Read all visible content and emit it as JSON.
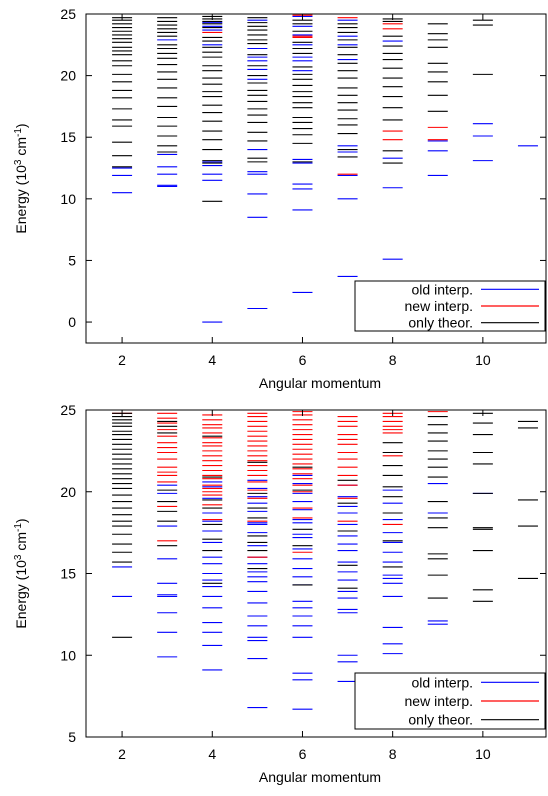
{
  "chart_data": [
    {
      "type": "scatter",
      "title": "",
      "xlabel": "Angular momentum",
      "ylabel": "Energy (10^3 cm^-1)",
      "ylabel_parts": {
        "base": "Energy (10",
        "exp1": "3",
        "mid": " cm",
        "exp2": "-1",
        "end": ")"
      },
      "xlim": [
        1.2,
        11.4
      ],
      "ylim": [
        -1.7,
        25
      ],
      "xticks": [
        "2",
        "4",
        "6",
        "8",
        "10"
      ],
      "xtick_values": [
        2,
        4,
        6,
        8,
        10
      ],
      "yticks": [
        "0",
        "5",
        "10",
        "15",
        "20",
        "25"
      ],
      "ytick_values": [
        0,
        5,
        10,
        15,
        20,
        25
      ],
      "grid": false,
      "legend": {
        "placement": "bottom-right"
      },
      "series": [
        {
          "name": "old interp.",
          "color": "#0000ff",
          "levels": [
            {
              "l": 2,
              "e": [
                10.5,
                11.9,
                12.5
              ]
            },
            {
              "l": 3,
              "e": [
                11.0,
                11.1,
                12.0,
                12.6,
                13.6,
                22.9
              ]
            },
            {
              "l": 4,
              "e": [
                0.0,
                11.5,
                12.0,
                12.7,
                13.0,
                22.5,
                23.7,
                24.0,
                24.3
              ]
            },
            {
              "l": 5,
              "e": [
                1.1,
                8.5,
                10.4,
                12.0,
                12.2,
                14.0,
                19.7,
                20.5,
                21.2,
                21.5,
                22.2,
                24.5
              ]
            },
            {
              "l": 6,
              "e": [
                2.4,
                9.1,
                10.8,
                11.2,
                12.9,
                13.2,
                20.4,
                21.2,
                21.5,
                22.5,
                23.3,
                24.0,
                24.8
              ]
            },
            {
              "l": 7,
              "e": [
                3.7,
                10.0,
                11.9,
                13.8,
                14.3,
                21.3,
                22.5,
                23.2,
                24.5
              ]
            },
            {
              "l": 8,
              "e": [
                5.1,
                10.9,
                13.3,
                22.8
              ]
            },
            {
              "l": 9,
              "e": [
                11.9,
                13.9,
                14.7
              ]
            },
            {
              "l": 10,
              "e": [
                13.1,
                15.1,
                16.1
              ]
            },
            {
              "l": 11,
              "e": [
                14.3
              ]
            }
          ]
        },
        {
          "name": "new interp.",
          "color": "#ff0000",
          "levels": [
            {
              "l": 4,
              "e": [
                23.5
              ]
            },
            {
              "l": 6,
              "e": [
                23.1,
                23.2,
                24.9
              ]
            },
            {
              "l": 7,
              "e": [
                12.0,
                24.7
              ]
            },
            {
              "l": 8,
              "e": [
                14.8,
                15.5,
                23.8,
                24.2
              ]
            },
            {
              "l": 9,
              "e": [
                14.8,
                15.8
              ]
            }
          ]
        },
        {
          "name": "only theor.",
          "color": "#000000",
          "levels": [
            {
              "l": 2,
              "e": [
                12.6,
                13.5,
                14.6,
                15.9,
                16.4,
                17.3,
                18.2,
                18.8,
                19.5,
                20.1,
                20.8,
                21.2,
                21.7,
                22.0,
                22.3,
                22.7,
                23.0,
                23.3,
                23.6,
                23.9,
                24.2,
                24.5,
                24.7
              ]
            },
            {
              "l": 3,
              "e": [
                13.8,
                14.3,
                15.1,
                15.9,
                16.6,
                17.5,
                18.2,
                19.0,
                19.7,
                20.3,
                20.9,
                21.4,
                21.8,
                22.2,
                22.5,
                23.2,
                23.5,
                23.8,
                24.1,
                24.4,
                24.7
              ]
            },
            {
              "l": 4,
              "e": [
                9.8,
                12.9,
                13.1,
                14.0,
                14.8,
                15.5,
                16.3,
                17.0,
                17.6,
                18.3,
                18.7,
                19.3,
                19.8,
                20.4,
                20.8,
                21.5,
                21.9,
                22.3,
                22.8,
                23.1,
                23.9,
                24.2,
                24.4,
                24.6,
                24.8
              ]
            },
            {
              "l": 5,
              "e": [
                13.0,
                13.3,
                14.7,
                15.4,
                16.2,
                16.8,
                17.3,
                17.9,
                18.4,
                18.8,
                19.4,
                20.0,
                20.8,
                21.7,
                22.6,
                22.9,
                23.3,
                23.7,
                24.0,
                24.3,
                24.7
              ]
            },
            {
              "l": 6,
              "e": [
                13.0,
                14.5,
                15.2,
                15.7,
                16.2,
                16.6,
                17.4,
                17.8,
                18.3,
                18.7,
                19.2,
                19.7,
                20.1,
                20.7,
                21.8,
                22.2,
                22.7,
                23.6,
                24.2,
                24.5
              ]
            },
            {
              "l": 7,
              "e": [
                13.4,
                14.0,
                15.3,
                16.0,
                16.5,
                17.2,
                17.8,
                18.4,
                19.0,
                19.8,
                20.4,
                21.0,
                21.7,
                22.3,
                22.9,
                23.5,
                23.9,
                24.2
              ]
            },
            {
              "l": 8,
              "e": [
                12.9,
                13.9,
                16.4,
                17.4,
                18.3,
                19.1,
                19.8,
                20.6,
                21.3,
                21.8,
                22.4,
                23.2,
                24.4,
                24.6
              ]
            },
            {
              "l": 9,
              "e": [
                17.1,
                18.4,
                19.5,
                20.3,
                21.0,
                22.3,
                22.9,
                23.4,
                24.2
              ]
            },
            {
              "l": 10,
              "e": [
                20.1,
                24.1,
                24.5
              ]
            }
          ]
        }
      ]
    },
    {
      "type": "scatter",
      "title": "",
      "xlabel": "Angular momentum",
      "ylabel": "Energy (10^3 cm^-1)",
      "ylabel_parts": {
        "base": "Energy (10",
        "exp1": "3",
        "mid": " cm",
        "exp2": "-1",
        "end": ")"
      },
      "xlim": [
        1.2,
        11.4
      ],
      "ylim": [
        5,
        25
      ],
      "xticks": [
        "2",
        "4",
        "6",
        "8",
        "10"
      ],
      "xtick_values": [
        2,
        4,
        6,
        8,
        10
      ],
      "yticks": [
        "5",
        "10",
        "15",
        "20",
        "25"
      ],
      "ytick_values": [
        5,
        10,
        15,
        20,
        25
      ],
      "grid": false,
      "legend": {
        "placement": "bottom-right"
      },
      "series": [
        {
          "name": "old interp.",
          "color": "#0000ff",
          "levels": [
            {
              "l": 2,
              "e": [
                13.6,
                15.4
              ]
            },
            {
              "l": 3,
              "e": [
                9.9,
                11.4,
                12.6,
                13.6,
                13.7,
                14.4,
                15.9,
                17.9,
                19.9,
                20.4
              ]
            },
            {
              "l": 4,
              "e": [
                9.1,
                10.6,
                11.4,
                12.0,
                12.9,
                13.6,
                14.2,
                14.6,
                15.0,
                15.6,
                16.0,
                16.9,
                17.6,
                18.2,
                18.7,
                19.6,
                20.3,
                20.6
              ]
            },
            {
              "l": 5,
              "e": [
                6.8,
                9.8,
                10.9,
                11.1,
                11.8,
                12.4,
                13.2,
                13.9,
                14.5,
                14.8,
                15.1,
                15.6,
                16.0,
                16.7,
                17.5,
                18.0,
                18.1,
                18.8,
                19.3,
                19.7,
                20.2,
                20.7
              ]
            },
            {
              "l": 6,
              "e": [
                6.7,
                8.5,
                8.9,
                11.1,
                11.8,
                12.4,
                12.9,
                13.3,
                14.3,
                14.8,
                15.3,
                15.9,
                16.5,
                17.2,
                17.4,
                18.1,
                18.3,
                18.9,
                19.4,
                19.9,
                20.5,
                21.0
              ]
            },
            {
              "l": 7,
              "e": [
                8.4,
                9.6,
                10.0,
                12.6,
                12.8,
                13.5,
                13.9,
                14.6,
                15.1,
                15.7,
                16.4,
                16.8,
                17.3,
                18.0,
                18.7,
                19.1,
                19.7,
                20.4
              ]
            },
            {
              "l": 8,
              "e": [
                10.1,
                10.7,
                11.7,
                13.6,
                14.4,
                14.7,
                14.9,
                15.7,
                16.3,
                16.9,
                17.5,
                18.3,
                19.3,
                20.1
              ]
            },
            {
              "l": 9,
              "e": [
                11.9,
                12.1,
                18.7,
                20.5
              ]
            },
            {
              "l": 10,
              "e": [
                19.9
              ]
            }
          ]
        },
        {
          "name": "new interp.",
          "color": "#ff0000",
          "levels": [
            {
              "l": 2,
              "e": [
                24.8
              ]
            },
            {
              "l": 3,
              "e": [
                17.0,
                19.1,
                20.6,
                21.0,
                21.2,
                21.5,
                22.0,
                22.4,
                22.7,
                23.0,
                23.4,
                23.8,
                24.2,
                24.5,
                24.8
              ]
            },
            {
              "l": 4,
              "e": [
                18.3,
                19.2,
                19.8,
                20.0,
                20.2,
                20.4,
                20.8,
                21.0,
                21.3,
                21.6,
                21.9,
                22.2,
                22.5,
                22.8,
                23.0,
                23.3,
                23.6,
                23.9,
                24.1,
                24.4,
                24.7
              ]
            },
            {
              "l": 5,
              "e": [
                16.0,
                18.2,
                19.6,
                20.1,
                20.6,
                21.0,
                21.3,
                21.6,
                21.9,
                22.2,
                22.5,
                22.8,
                23.1,
                23.4,
                23.7,
                24.0,
                24.3,
                24.6,
                24.8
              ]
            },
            {
              "l": 6,
              "e": [
                16.3,
                18.4,
                19.0,
                20.0,
                20.4,
                20.8,
                21.1,
                21.4,
                21.7,
                22.0,
                22.3,
                22.6,
                22.9,
                23.2,
                23.5,
                23.8,
                24.1,
                24.4,
                24.7,
                24.9
              ]
            },
            {
              "l": 7,
              "e": [
                18.2,
                19.6,
                20.4,
                21.0,
                21.5,
                22.0,
                22.4,
                22.9,
                23.2,
                23.5,
                24.0,
                24.3,
                24.6
              ]
            },
            {
              "l": 8,
              "e": [
                18.0,
                22.2,
                23.6,
                23.8,
                24.0,
                24.3,
                24.6,
                24.8
              ]
            },
            {
              "l": 9,
              "e": [
                24.9
              ]
            }
          ]
        },
        {
          "name": "only theor.",
          "color": "#000000",
          "levels": [
            {
              "l": 2,
              "e": [
                11.1,
                15.7,
                16.3,
                16.8,
                17.4,
                17.9,
                18.2,
                18.6,
                19.0,
                19.4,
                19.8,
                20.2,
                20.5,
                20.8,
                21.1,
                21.4,
                21.7,
                22.0,
                22.3,
                22.6,
                22.9,
                23.2,
                23.5,
                23.7,
                24.0,
                24.2,
                24.4,
                24.6,
                24.8
              ]
            },
            {
              "l": 3,
              "e": [
                16.7,
                18.2,
                18.8,
                19.4,
                20.1,
                23.6,
                24.0,
                24.3
              ]
            },
            {
              "l": 4,
              "e": [
                14.4,
                16.4,
                17.1,
                18.0,
                19.0,
                19.5,
                20.9,
                23.4
              ]
            },
            {
              "l": 5,
              "e": [
                15.3,
                16.4,
                16.9,
                17.3,
                18.4,
                19.0,
                19.9,
                21.8
              ]
            },
            {
              "l": 6,
              "e": [
                14.3,
                16.7,
                17.7,
                20.1,
                21.5
              ]
            },
            {
              "l": 7,
              "e": [
                14.1,
                15.5,
                17.6,
                19.3,
                20.7
              ]
            },
            {
              "l": 8,
              "e": [
                15.4,
                17.0,
                18.7,
                19.7,
                20.3,
                21.0,
                21.6,
                22.4,
                23.0
              ]
            },
            {
              "l": 9,
              "e": [
                13.5,
                14.9,
                15.9,
                16.2,
                17.8,
                18.4,
                19.4,
                20.9,
                21.5,
                22.0,
                22.5,
                23.1,
                23.6,
                24.1,
                24.6
              ]
            },
            {
              "l": 10,
              "e": [
                13.3,
                14.0,
                16.4,
                17.7,
                17.8,
                19.9,
                21.7,
                22.4,
                23.5,
                24.2,
                24.8
              ]
            },
            {
              "l": 11,
              "e": [
                14.7,
                17.9,
                19.5,
                23.9,
                24.3
              ]
            }
          ]
        }
      ]
    }
  ]
}
